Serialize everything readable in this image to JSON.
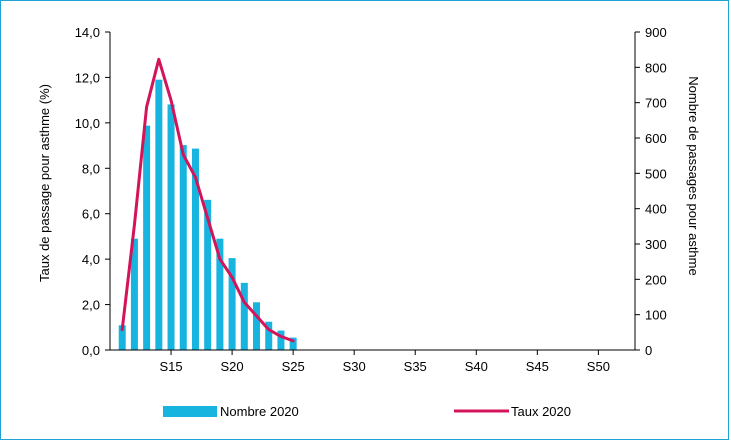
{
  "chart_data": {
    "type": "bar+line",
    "title": "",
    "ylabel_left": "Taux de passage pour asthme (%)",
    "ylabel_right": "Nombre de passages pour asthme",
    "xlim_weeks": [
      10,
      53
    ],
    "ylim_left": [
      0,
      14
    ],
    "ylim_right": [
      0,
      900
    ],
    "left_ticks": [
      "0,0",
      "2,0",
      "4,0",
      "6,0",
      "8,0",
      "10,0",
      "12,0",
      "14,0"
    ],
    "right_ticks": [
      "0",
      "100",
      "200",
      "300",
      "400",
      "500",
      "600",
      "700",
      "800",
      "900"
    ],
    "x_ticks": [
      {
        "week": 15,
        "label": "S15"
      },
      {
        "week": 20,
        "label": "S20"
      },
      {
        "week": 25,
        "label": "S25"
      },
      {
        "week": 30,
        "label": "S30"
      },
      {
        "week": 35,
        "label": "S35"
      },
      {
        "week": 40,
        "label": "S40"
      },
      {
        "week": 45,
        "label": "S45"
      },
      {
        "week": 50,
        "label": "S50"
      }
    ],
    "legend_position": "bottom",
    "series": [
      {
        "name": "Nombre 2020",
        "kind": "bar",
        "axis": "right",
        "color": "#17b4e0",
        "weeks": [
          11,
          12,
          13,
          14,
          15,
          16,
          17,
          18,
          19,
          20,
          21,
          22,
          23,
          24,
          25
        ],
        "values": [
          70,
          315,
          635,
          765,
          695,
          580,
          570,
          425,
          315,
          260,
          190,
          135,
          80,
          55,
          35
        ]
      },
      {
        "name": "Taux 2020",
        "kind": "line",
        "axis": "left",
        "color": "#d4145a",
        "weeks": [
          11,
          12,
          13,
          14,
          15,
          16,
          17,
          18,
          19,
          20,
          21,
          22,
          23,
          24,
          25
        ],
        "values": [
          0.9,
          5.5,
          10.7,
          12.8,
          11.0,
          8.6,
          7.6,
          5.8,
          4.0,
          3.2,
          2.1,
          1.5,
          0.9,
          0.6,
          0.4
        ]
      }
    ]
  }
}
